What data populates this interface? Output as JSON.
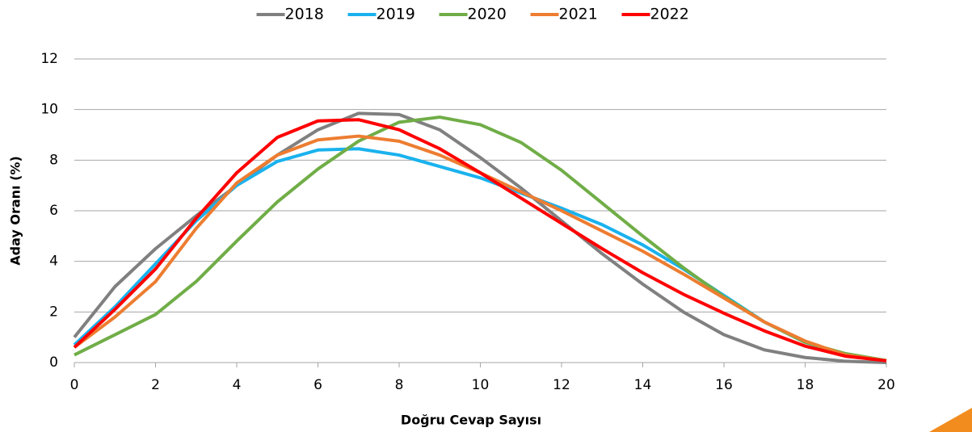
{
  "chart_data": {
    "type": "line",
    "xlabel": "Doğru Cevap Sayısı",
    "ylabel": "Aday Oranı (%)",
    "x": [
      0,
      1,
      2,
      3,
      4,
      5,
      6,
      7,
      8,
      9,
      10,
      11,
      12,
      13,
      14,
      15,
      16,
      17,
      18,
      19,
      20
    ],
    "xlim": [
      0,
      20
    ],
    "xticks": [
      0,
      2,
      4,
      6,
      8,
      10,
      12,
      14,
      16,
      18,
      20
    ],
    "ylim": [
      0,
      12
    ],
    "yticks": [
      0,
      2,
      4,
      6,
      8,
      10,
      12
    ],
    "grid": true,
    "legend": "top",
    "series": [
      {
        "name": "2018",
        "color": "#808080",
        "values": [
          1.0,
          3.0,
          4.5,
          5.8,
          7.0,
          8.2,
          9.2,
          9.85,
          9.8,
          9.2,
          8.1,
          6.9,
          5.6,
          4.3,
          3.1,
          2.0,
          1.1,
          0.5,
          0.2,
          0.05,
          0.0
        ]
      },
      {
        "name": "2019",
        "color": "#1ab2ee",
        "values": [
          0.7,
          2.2,
          3.9,
          5.6,
          7.0,
          7.95,
          8.4,
          8.45,
          8.2,
          7.75,
          7.3,
          6.7,
          6.1,
          5.45,
          4.65,
          3.7,
          2.65,
          1.6,
          0.8,
          0.3,
          0.07
        ]
      },
      {
        "name": "2020",
        "color": "#70ad47",
        "values": [
          0.3,
          1.1,
          1.9,
          3.2,
          4.8,
          6.35,
          7.65,
          8.75,
          9.5,
          9.7,
          9.4,
          8.7,
          7.6,
          6.3,
          5.0,
          3.75,
          2.6,
          1.6,
          0.8,
          0.35,
          0.08
        ]
      },
      {
        "name": "2021",
        "color": "#ed7d31",
        "values": [
          0.6,
          1.8,
          3.2,
          5.3,
          7.1,
          8.2,
          8.8,
          8.95,
          8.75,
          8.2,
          7.5,
          6.75,
          6.0,
          5.2,
          4.4,
          3.5,
          2.55,
          1.6,
          0.85,
          0.3,
          0.07
        ]
      },
      {
        "name": "2022",
        "color": "#ff0000",
        "values": [
          0.6,
          2.1,
          3.7,
          5.7,
          7.5,
          8.9,
          9.55,
          9.6,
          9.2,
          8.45,
          7.5,
          6.5,
          5.5,
          4.5,
          3.55,
          2.7,
          1.95,
          1.25,
          0.65,
          0.25,
          0.07
        ]
      }
    ]
  }
}
